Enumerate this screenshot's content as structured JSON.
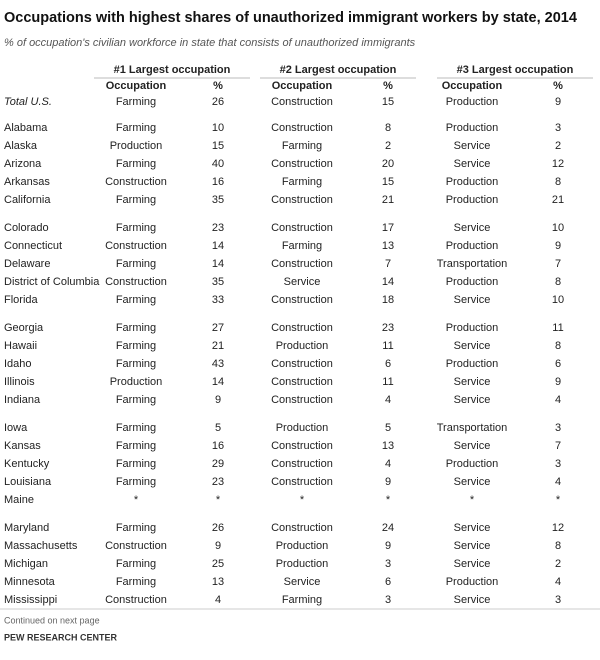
{
  "header": {
    "title": "Occupations with highest shares of unauthorized immigrant workers by state, 2014",
    "subtitle": "% of occupation's civilian workforce in state that consists of  unauthorized immigrants"
  },
  "table": {
    "column_groups": [
      "#1 Largest occupation",
      "#2 Largest occupation",
      "#3 Largest occupation"
    ],
    "subheaders": [
      "Occupation",
      "%",
      "Occupation",
      "%",
      "Occupation",
      "%"
    ],
    "total": [
      "Total U.S.",
      "Farming",
      26,
      "Construction",
      15,
      "Production",
      9
    ],
    "groups": [
      [
        [
          "Alabama",
          "Farming",
          10,
          "Construction",
          8,
          "Production",
          3
        ],
        [
          "Alaska",
          "Production",
          15,
          "Farming",
          2,
          "Service",
          2
        ],
        [
          "Arizona",
          "Farming",
          40,
          "Construction",
          20,
          "Service",
          12
        ],
        [
          "Arkansas",
          "Construction",
          16,
          "Farming",
          15,
          "Production",
          8
        ],
        [
          "California",
          "Farming",
          35,
          "Construction",
          21,
          "Production",
          21
        ]
      ],
      [
        [
          "Colorado",
          "Farming",
          23,
          "Construction",
          17,
          "Service",
          10
        ],
        [
          "Connecticut",
          "Construction",
          14,
          "Farming",
          13,
          "Production",
          9
        ],
        [
          "Delaware",
          "Farming",
          14,
          "Construction",
          7,
          "Transportation",
          7
        ],
        [
          "District of Columbia",
          "Construction",
          35,
          "Service",
          14,
          "Production",
          8
        ],
        [
          "Florida",
          "Farming",
          33,
          "Construction",
          18,
          "Service",
          10
        ]
      ],
      [
        [
          "Georgia",
          "Farming",
          27,
          "Construction",
          23,
          "Production",
          11
        ],
        [
          "Hawaii",
          "Farming",
          21,
          "Production",
          11,
          "Service",
          8
        ],
        [
          "Idaho",
          "Farming",
          43,
          "Construction",
          6,
          "Production",
          6
        ],
        [
          "Illinois",
          "Production",
          14,
          "Construction",
          11,
          "Service",
          9
        ],
        [
          "Indiana",
          "Farming",
          9,
          "Construction",
          4,
          "Service",
          4
        ]
      ],
      [
        [
          "Iowa",
          "Farming",
          5,
          "Production",
          5,
          "Transportation",
          3
        ],
        [
          "Kansas",
          "Farming",
          16,
          "Construction",
          13,
          "Service",
          7
        ],
        [
          "Kentucky",
          "Farming",
          29,
          "Construction",
          4,
          "Production",
          3
        ],
        [
          "Louisiana",
          "Farming",
          23,
          "Construction",
          9,
          "Service",
          4
        ],
        [
          "Maine",
          "*",
          "*",
          "*",
          "*",
          "*",
          "*"
        ]
      ],
      [
        [
          "Maryland",
          "Farming",
          26,
          "Construction",
          24,
          "Service",
          12
        ],
        [
          "Massachusetts",
          "Construction",
          9,
          "Production",
          9,
          "Service",
          8
        ],
        [
          "Michigan",
          "Farming",
          25,
          "Production",
          3,
          "Service",
          2
        ],
        [
          "Minnesota",
          "Farming",
          13,
          "Service",
          6,
          "Production",
          4
        ],
        [
          "Mississippi",
          "Construction",
          4,
          "Farming",
          3,
          "Service",
          3
        ]
      ]
    ]
  },
  "footer": {
    "note": "Continued on next page",
    "source": "PEW RESEARCH CENTER"
  }
}
